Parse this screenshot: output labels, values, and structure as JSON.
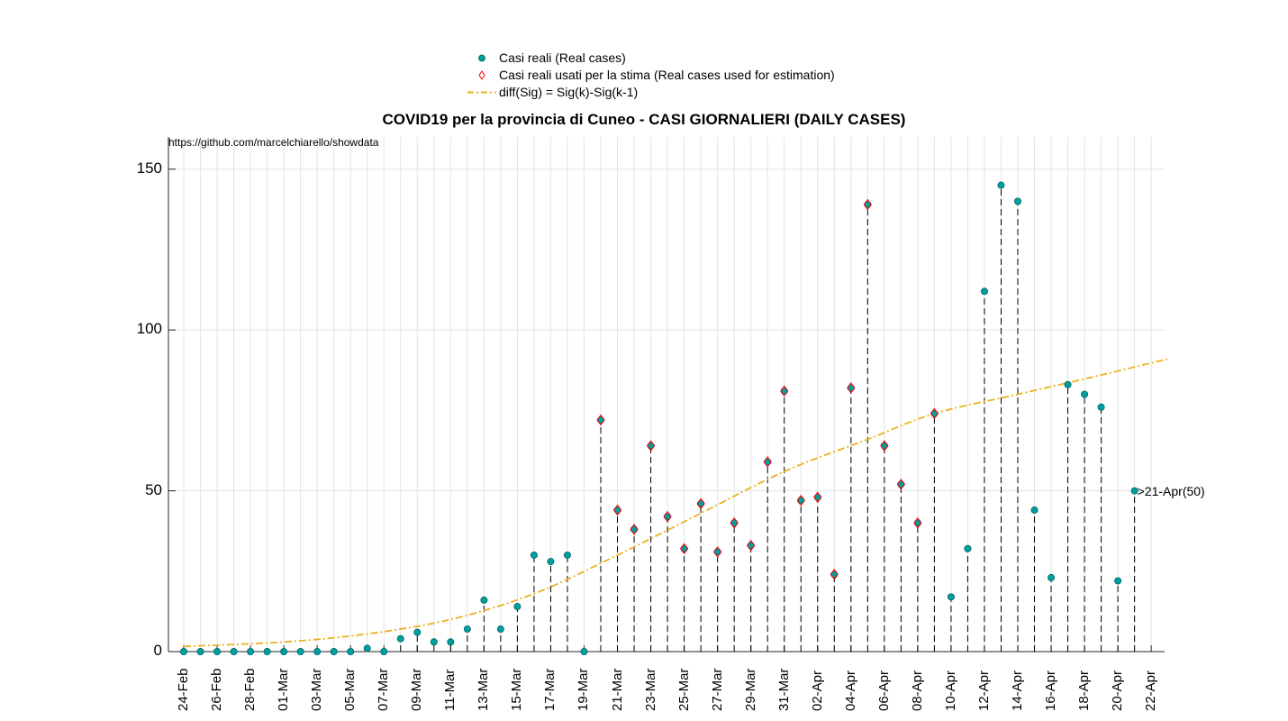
{
  "chart_data": {
    "type": "scatter",
    "title": "COVID19 per la provincia di Cuneo - CASI GIORNALIERI (DAILY CASES)",
    "source_note": "https://github.com/marcelchiarello/showdata",
    "xlabel": "",
    "ylabel": "",
    "ylim": [
      0,
      160
    ],
    "y_ticks": [
      "0",
      "50",
      "100",
      "150"
    ],
    "grid": true,
    "legend_position": "top",
    "x_tick_labels": [
      "24-Feb",
      "26-Feb",
      "28-Feb",
      "01-Mar",
      "03-Mar",
      "05-Mar",
      "07-Mar",
      "09-Mar",
      "11-Mar",
      "13-Mar",
      "15-Mar",
      "17-Mar",
      "19-Mar",
      "21-Mar",
      "23-Mar",
      "25-Mar",
      "27-Mar",
      "29-Mar",
      "31-Mar",
      "02-Apr",
      "04-Apr",
      "06-Apr",
      "08-Apr",
      "10-Apr",
      "12-Apr",
      "14-Apr",
      "16-Apr",
      "18-Apr",
      "20-Apr",
      "22-Apr"
    ],
    "dates": [
      "24-Feb",
      "25-Feb",
      "26-Feb",
      "27-Feb",
      "28-Feb",
      "29-Feb",
      "01-Mar",
      "02-Mar",
      "03-Mar",
      "04-Mar",
      "05-Mar",
      "06-Mar",
      "07-Mar",
      "08-Mar",
      "09-Mar",
      "10-Mar",
      "11-Mar",
      "12-Mar",
      "13-Mar",
      "14-Mar",
      "15-Mar",
      "16-Mar",
      "17-Mar",
      "18-Mar",
      "19-Mar",
      "20-Mar",
      "21-Mar",
      "22-Mar",
      "23-Mar",
      "24-Mar",
      "25-Mar",
      "26-Mar",
      "27-Mar",
      "28-Mar",
      "29-Mar",
      "30-Mar",
      "31-Mar",
      "01-Apr",
      "02-Apr",
      "03-Apr",
      "04-Apr",
      "05-Apr",
      "06-Apr",
      "07-Apr",
      "08-Apr",
      "09-Apr",
      "10-Apr",
      "11-Apr",
      "12-Apr",
      "13-Apr",
      "14-Apr",
      "15-Apr",
      "16-Apr",
      "17-Apr",
      "18-Apr",
      "19-Apr",
      "20-Apr",
      "21-Apr",
      "22-Apr"
    ],
    "series": [
      {
        "name": "Casi reali (Real cases)",
        "color": "#00a0a0",
        "x": [
          "24-Feb",
          "25-Feb",
          "26-Feb",
          "27-Feb",
          "28-Feb",
          "29-Feb",
          "01-Mar",
          "02-Mar",
          "03-Mar",
          "04-Mar",
          "05-Mar",
          "06-Mar",
          "07-Mar",
          "08-Mar",
          "09-Mar",
          "10-Mar",
          "11-Mar",
          "12-Mar",
          "13-Mar",
          "14-Mar",
          "15-Mar",
          "16-Mar",
          "17-Mar",
          "18-Mar",
          "19-Mar",
          "20-Mar",
          "21-Mar",
          "22-Mar",
          "23-Mar",
          "24-Mar",
          "25-Mar",
          "26-Mar",
          "27-Mar",
          "28-Mar",
          "29-Mar",
          "30-Mar",
          "31-Mar",
          "01-Apr",
          "02-Apr",
          "03-Apr",
          "04-Apr",
          "05-Apr",
          "06-Apr",
          "07-Apr",
          "08-Apr",
          "09-Apr",
          "10-Apr",
          "11-Apr",
          "12-Apr",
          "13-Apr",
          "14-Apr",
          "15-Apr",
          "16-Apr",
          "17-Apr",
          "18-Apr",
          "19-Apr",
          "20-Apr",
          "21-Apr"
        ],
        "values": [
          0,
          0,
          0,
          0,
          0,
          0,
          0,
          0,
          0,
          0,
          0,
          1,
          0,
          4,
          6,
          3,
          3,
          7,
          16,
          7,
          14,
          30,
          28,
          30,
          0,
          72,
          44,
          38,
          64,
          42,
          32,
          46,
          31,
          40,
          33,
          59,
          81,
          47,
          48,
          24,
          82,
          139,
          64,
          52,
          40,
          74,
          17,
          32,
          112,
          145,
          140,
          44,
          23,
          83,
          80,
          76,
          22,
          50
        ]
      },
      {
        "name": "Casi reali usati per la stima (Real cases used for estimation)",
        "color": "#ff0000",
        "x": [
          "20-Mar",
          "21-Mar",
          "22-Mar",
          "23-Mar",
          "24-Mar",
          "25-Mar",
          "26-Mar",
          "27-Mar",
          "28-Mar",
          "29-Mar",
          "30-Mar",
          "31-Mar",
          "01-Apr",
          "02-Apr",
          "03-Apr",
          "04-Apr",
          "05-Apr",
          "06-Apr",
          "07-Apr",
          "08-Apr",
          "09-Apr"
        ],
        "values": [
          72,
          44,
          38,
          64,
          42,
          32,
          46,
          31,
          40,
          33,
          59,
          81,
          47,
          48,
          24,
          82,
          139,
          64,
          52,
          40,
          74
        ]
      },
      {
        "name": "diff(Sig) = Sig(k)-Sig(k-1)",
        "color": "#edb120",
        "x": [
          "24-Feb",
          "01-Mar",
          "06-Mar",
          "11-Mar",
          "16-Mar",
          "21-Mar",
          "26-Mar",
          "31-Mar",
          "05-Apr",
          "09-Apr",
          "14-Apr",
          "19-Apr",
          "23-Apr"
        ],
        "values": [
          1.6,
          3.0,
          5.5,
          10,
          18,
          30,
          43,
          56,
          66,
          74,
          80,
          86,
          91
        ]
      }
    ],
    "annotations": [
      {
        "text": ">21-Apr(50)",
        "x": "21-Apr",
        "y": 50
      }
    ]
  }
}
